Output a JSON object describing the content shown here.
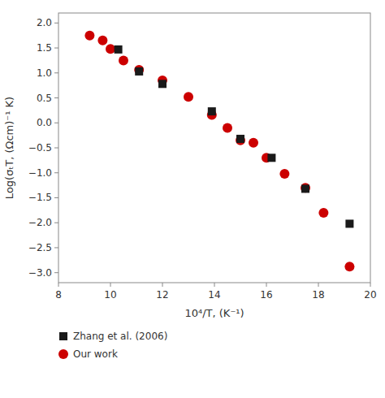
{
  "chart_data": {
    "type": "scatter",
    "xlabel": "10⁴/T, (K⁻¹)",
    "ylabel": "Log(σₜT, (Ωcm)⁻¹ K)",
    "series": [
      {
        "name": "Zhang et al. (2006)",
        "color": "#1a1a1a",
        "marker": "square",
        "x": [
          10.3,
          11.1,
          12.0,
          13.9,
          15.0,
          16.2,
          17.5,
          19.2
        ],
        "values": [
          1.47,
          1.03,
          0.78,
          0.23,
          -0.32,
          -0.7,
          -1.32,
          -2.02
        ]
      },
      {
        "name": "Our work",
        "color": "#cc0000",
        "marker": "circle",
        "x": [
          9.2,
          9.7,
          10.0,
          10.5,
          11.1,
          12.0,
          13.0,
          13.9,
          14.5,
          15.0,
          15.5,
          16.0,
          16.7,
          17.5,
          18.2,
          19.2
        ],
        "values": [
          1.75,
          1.65,
          1.48,
          1.25,
          1.06,
          0.85,
          0.52,
          0.16,
          -0.1,
          -0.35,
          -0.4,
          -0.7,
          -1.02,
          -1.3,
          -1.8,
          -2.88
        ]
      }
    ],
    "xlim": [
      8,
      20
    ],
    "ylim": [
      -3.2,
      2.2
    ],
    "xticks": [
      8,
      10,
      12,
      14,
      16,
      18,
      20
    ],
    "yticks": [
      {
        "value": -3.0,
        "label": "−3.0"
      },
      {
        "value": -2.5,
        "label": "−2.5"
      },
      {
        "value": -2.0,
        "label": "−2.0"
      },
      {
        "value": -1.5,
        "label": "−1.5"
      },
      {
        "value": -1.0,
        "label": "−1.0"
      },
      {
        "value": -0.5,
        "label": "−0.5"
      },
      {
        "value": 0.0,
        "label": "0.0"
      },
      0.5,
      {
        "value": 1.0,
        "label": "1.0"
      },
      1.5,
      {
        "value": 2.0,
        "label": "2.0"
      }
    ],
    "grid": false,
    "legend": "bottom"
  }
}
